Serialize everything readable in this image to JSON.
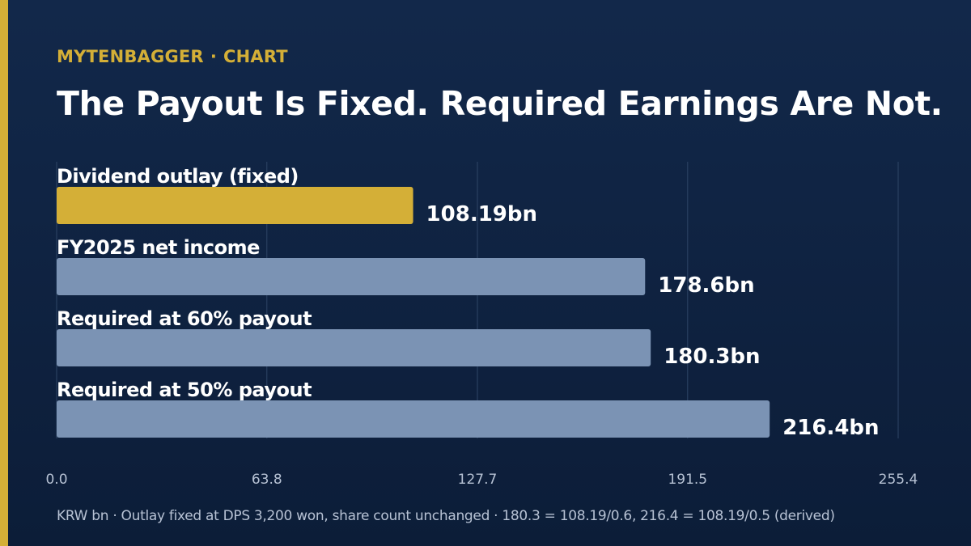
{
  "header": {
    "brand": "MYTENBAGGER",
    "separator": "·",
    "section": "CHART",
    "title": "The Payout Is Fixed. Required Earnings Are Not."
  },
  "footnote": "KRW bn · Outlay fixed at DPS 3,200 won, share count unchanged · 180.3 = 108.19/0.6, 216.4 = 108.19/0.5 (derived)",
  "colors": {
    "accent": "#d4af37",
    "bar_highlight": "#d4af37",
    "bar_default": "#7b93b4",
    "grid": "#2e4566",
    "tick_text": "#b7c2d4"
  },
  "chart_data": {
    "type": "bar",
    "orientation": "horizontal",
    "categories": [
      "Dividend outlay (fixed)",
      "FY2025 net income",
      "Required at 60% payout",
      "Required at 50% payout"
    ],
    "values": [
      108.19,
      178.6,
      180.3,
      216.4
    ],
    "value_labels": [
      "108.19bn",
      "178.6bn",
      "180.3bn",
      "216.4bn"
    ],
    "highlight_index": 0,
    "xlim": [
      0,
      255.4
    ],
    "x_ticks": [
      0,
      63.8,
      127.7,
      191.5,
      255.4
    ],
    "x_tick_labels": [
      "0.0",
      "63.8",
      "127.7",
      "191.5",
      "255.4"
    ],
    "grid": "vertical",
    "xlabel": "",
    "ylabel": ""
  }
}
